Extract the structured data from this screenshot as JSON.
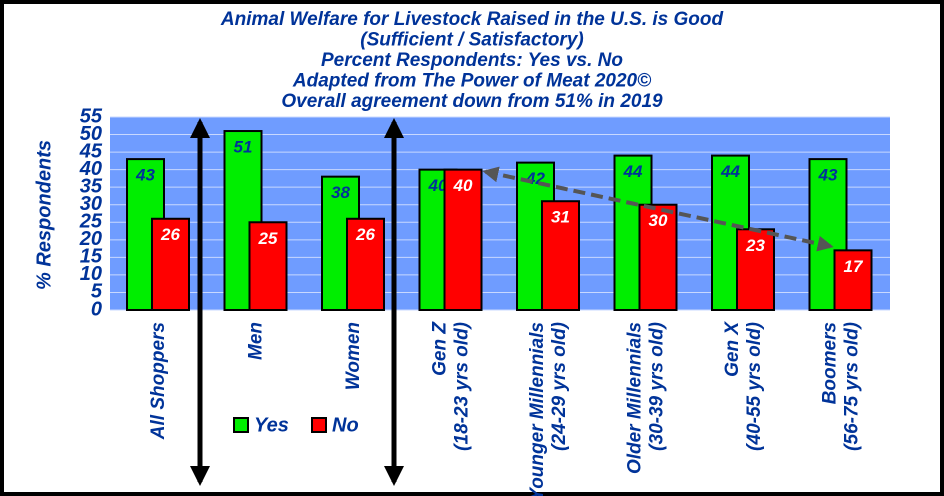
{
  "chart_data": {
    "type": "bar",
    "title": [
      "Animal Welfare for Livestock Raised in the U.S. is Good",
      "(Sufficient / Satisfactory)",
      "Percent Respondents:  Yes vs. No",
      "Adapted from The Power of Meat 2020©",
      "Overall agreement down from 51% in 2019"
    ],
    "y_label": "% Respondents",
    "categories": [
      [
        "All Shoppers"
      ],
      [
        "Men"
      ],
      [
        "Women"
      ],
      [
        "Gen Z",
        "(18-23 yrs old)"
      ],
      [
        "Younger Millennials",
        "(24-29 yrs old)"
      ],
      [
        "Older Millennials",
        "(30-39 yrs old)"
      ],
      [
        "Gen X",
        "(40-55 yrs old)"
      ],
      [
        "Boomers",
        "(56-75 yrs old)"
      ]
    ],
    "series": [
      {
        "name": "Yes",
        "color": "#00ee00",
        "values": [
          43,
          51,
          38,
          40,
          42,
          44,
          44,
          43
        ]
      },
      {
        "name": "No",
        "color": "#ff0000",
        "values": [
          26,
          25,
          26,
          40,
          31,
          30,
          23,
          17
        ]
      }
    ],
    "ylim": [
      0,
      55
    ],
    "yticks": [
      0,
      5,
      10,
      15,
      20,
      25,
      30,
      35,
      40,
      45,
      50,
      55
    ],
    "grid": true
  }
}
